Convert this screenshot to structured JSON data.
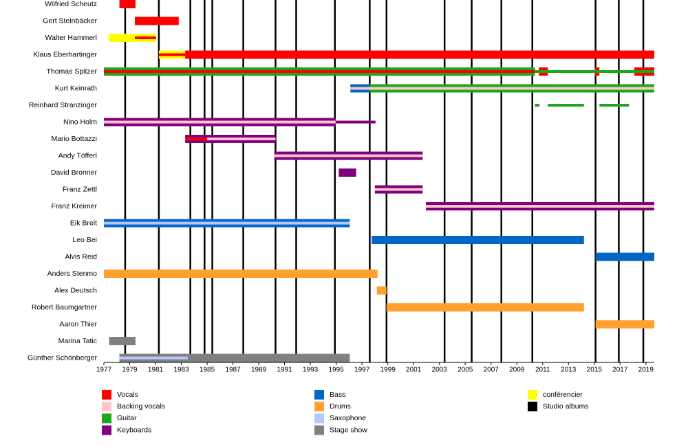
{
  "chart_data": {
    "type": "timeline",
    "xlim": [
      1977,
      2019.65
    ],
    "xticks": [
      1977,
      1979,
      1981,
      1983,
      1985,
      1987,
      1989,
      1991,
      1993,
      1995,
      1997,
      1999,
      2001,
      2003,
      2005,
      2007,
      2009,
      2011,
      2013,
      2015,
      2017,
      2019
    ],
    "roles": [
      {
        "name": "Vocals",
        "color": "#ff0000"
      },
      {
        "name": "Backing vocals",
        "color": "#ffc6c6"
      },
      {
        "name": "Guitar",
        "color": "#1aa81a"
      },
      {
        "name": "Keyboards",
        "color": "#800080"
      },
      {
        "name": "Bass",
        "color": "#0066c8"
      },
      {
        "name": "Drums",
        "color": "#ffa030"
      },
      {
        "name": "Saxophone",
        "color": "#b4c8ff"
      },
      {
        "name": "Stage show",
        "color": "#808080"
      },
      {
        "name": "conférencier",
        "color": "#ffff00"
      },
      {
        "name": "Studio albums",
        "color": "#000000"
      }
    ],
    "studio_albums": [
      1978.65,
      1981.26,
      1983.7,
      1984.8,
      1985.4,
      1987.8,
      1990.3,
      1991.9,
      1994.9,
      1997.6,
      1998.9,
      2003.4,
      2005.5,
      2007.8,
      2010.2,
      2015.1,
      2016.9,
      2018.8
    ],
    "members": [
      {
        "name": "Wilfried Scheutz",
        "periods": [
          {
            "role": "Vocals",
            "layer": "main",
            "start": 1978.2,
            "end": 1979.45
          }
        ]
      },
      {
        "name": "Gert Steinbäcker",
        "periods": [
          {
            "role": "Vocals",
            "layer": "main",
            "start": 1979.4,
            "end": 1982.8
          }
        ]
      },
      {
        "name": "Walter Hammerl",
        "periods": [
          {
            "role": "conférencier",
            "layer": "main",
            "start": 1977.4,
            "end": 1981.05
          },
          {
            "role": "Vocals",
            "layer": "secondary",
            "start": 1979.4,
            "end": 1981.05
          }
        ]
      },
      {
        "name": "Klaus Eberhartinger",
        "periods": [
          {
            "role": "conférencier",
            "layer": "main",
            "start": 1981.26,
            "end": 1983.3
          },
          {
            "role": "Vocals",
            "layer": "secondary",
            "start": 1981.26,
            "end": 1983.3
          },
          {
            "role": "Vocals",
            "layer": "main",
            "start": 1983.3,
            "end": 2019.65
          }
        ]
      },
      {
        "name": "Thomas Spitzer",
        "periods": [
          {
            "role": "Guitar",
            "layer": "main",
            "start": 1977,
            "end": 2010.4
          },
          {
            "role": "Vocals",
            "layer": "secondary",
            "start": 1977,
            "end": 2010.4
          },
          {
            "role": "Guitar",
            "layer": "secondary",
            "start": 2010.4,
            "end": 2019.65
          },
          {
            "role": "Vocals",
            "layer": "main",
            "start": 2010.7,
            "end": 2011.4
          },
          {
            "role": "Vocals",
            "layer": "main",
            "start": 2015.05,
            "end": 2015.4
          },
          {
            "role": "Vocals",
            "layer": "main",
            "start": 2018.1,
            "end": 2019.65
          }
        ]
      },
      {
        "name": "Kurt Keinrath",
        "periods": [
          {
            "role": "Bass",
            "layer": "main",
            "start": 1996.1,
            "end": 1997.6
          },
          {
            "role": "Guitar",
            "layer": "main",
            "start": 1997.6,
            "end": 2019.65
          },
          {
            "role": "Backing vocals",
            "layer": "secondary",
            "start": 1996.1,
            "end": 2019.65
          }
        ]
      },
      {
        "name": "Reinhard Stranzinger",
        "periods": [
          {
            "role": "Guitar",
            "layer": "secondary",
            "start": 2010.4,
            "end": 2010.75
          },
          {
            "role": "Guitar",
            "layer": "secondary",
            "start": 2011.4,
            "end": 2014.2
          },
          {
            "role": "Guitar",
            "layer": "secondary",
            "start": 2015.4,
            "end": 2017.7
          }
        ]
      },
      {
        "name": "Nino Holm",
        "periods": [
          {
            "role": "Keyboards",
            "layer": "main",
            "start": 1977,
            "end": 1994.96
          },
          {
            "role": "Backing vocals",
            "layer": "secondary",
            "start": 1977,
            "end": 1994.96
          },
          {
            "role": "Keyboards",
            "layer": "secondary",
            "start": 1994.96,
            "end": 1998.05
          }
        ]
      },
      {
        "name": "Mario Bottazzi",
        "periods": [
          {
            "role": "Keyboards",
            "layer": "main",
            "start": 1983.3,
            "end": 1990.3
          },
          {
            "role": "Backing vocals",
            "layer": "secondary",
            "start": 1983.3,
            "end": 1990.3
          },
          {
            "role": "Vocals",
            "layer": "secondary",
            "start": 1983.3,
            "end": 1985
          }
        ]
      },
      {
        "name": "Andy Töfferl",
        "periods": [
          {
            "role": "Keyboards",
            "layer": "main",
            "start": 1990.2,
            "end": 2001.7
          },
          {
            "role": "Backing vocals",
            "layer": "secondary",
            "start": 1990.2,
            "end": 2001.7
          }
        ]
      },
      {
        "name": "David Bronner",
        "periods": [
          {
            "role": "Keyboards",
            "layer": "main",
            "start": 1995.2,
            "end": 1996.55
          }
        ]
      },
      {
        "name": "Franz Zettl",
        "periods": [
          {
            "role": "Keyboards",
            "layer": "main",
            "start": 1998,
            "end": 2001.7
          },
          {
            "role": "Backing vocals",
            "layer": "secondary",
            "start": 1998,
            "end": 2001.7
          }
        ]
      },
      {
        "name": "Franz Kreimer",
        "periods": [
          {
            "role": "Keyboards",
            "layer": "main",
            "start": 2001.95,
            "end": 2019.65
          },
          {
            "role": "Backing vocals",
            "layer": "secondary",
            "start": 2001.95,
            "end": 2019.65
          }
        ]
      },
      {
        "name": "Eik Breit",
        "periods": [
          {
            "role": "Bass",
            "layer": "main",
            "start": 1977,
            "end": 1996.05
          },
          {
            "role": "Saxophone",
            "layer": "secondary",
            "start": 1977,
            "end": 1996.05
          }
        ]
      },
      {
        "name": "Leo Bei",
        "periods": [
          {
            "role": "Bass",
            "layer": "main",
            "start": 1997.75,
            "end": 2014.2
          }
        ]
      },
      {
        "name": "Alvis Reid",
        "periods": [
          {
            "role": "Bass",
            "layer": "main",
            "start": 2015.1,
            "end": 2019.65
          }
        ]
      },
      {
        "name": "Anders Stenmo",
        "periods": [
          {
            "role": "Drums",
            "layer": "main",
            "start": 1977,
            "end": 1998.2
          }
        ]
      },
      {
        "name": "Alex Deutsch",
        "periods": [
          {
            "role": "Drums",
            "layer": "main",
            "start": 1998.15,
            "end": 1998.9
          }
        ]
      },
      {
        "name": "Robert Baumgartner",
        "periods": [
          {
            "role": "Drums",
            "layer": "main",
            "start": 1998.9,
            "end": 2014.2
          }
        ]
      },
      {
        "name": "Aaron Thier",
        "periods": [
          {
            "role": "Drums",
            "layer": "main",
            "start": 2015.1,
            "end": 2019.65
          }
        ]
      },
      {
        "name": "Marina Tatic",
        "periods": [
          {
            "role": "Stage show",
            "layer": "main",
            "start": 1977.4,
            "end": 1979.45
          }
        ]
      },
      {
        "name": "Günther Schönberger",
        "periods": [
          {
            "role": "Stage show",
            "layer": "main",
            "start": 1978.2,
            "end": 1996.05
          },
          {
            "role": "Saxophone",
            "layer": "secondary",
            "start": 1978.2,
            "end": 1983.5
          }
        ]
      }
    ]
  }
}
